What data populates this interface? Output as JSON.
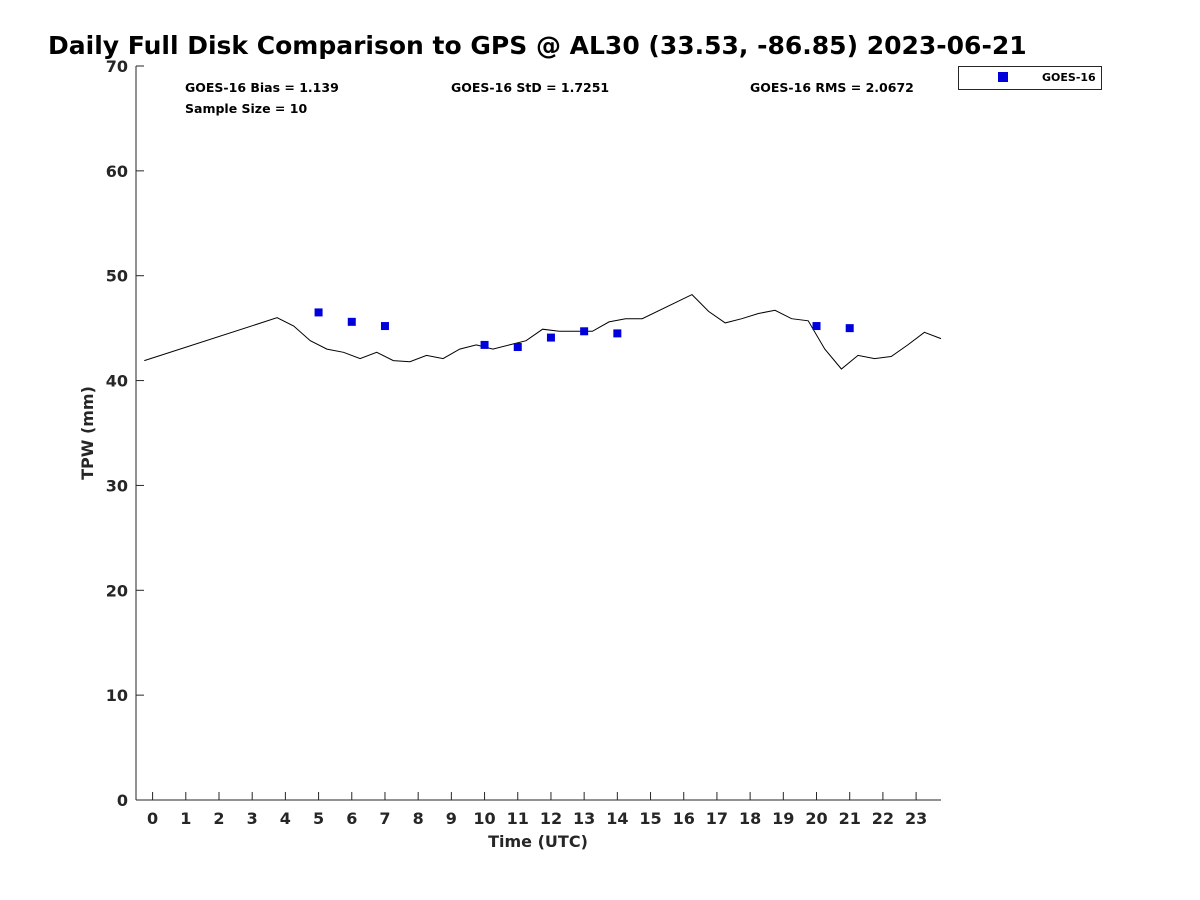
{
  "chart_data": {
    "type": "scatter",
    "title": "Daily Full Disk Comparison to GPS @ AL30 (33.53, -86.85) 2023-06-21",
    "xlabel": "Time (UTC)",
    "ylabel": "TPW (mm)",
    "xlim": [
      -0.5,
      23.75
    ],
    "ylim": [
      0,
      70
    ],
    "x_ticks": [
      0,
      1,
      2,
      3,
      4,
      5,
      6,
      7,
      8,
      9,
      10,
      11,
      12,
      13,
      14,
      15,
      16,
      17,
      18,
      19,
      20,
      21,
      22,
      23
    ],
    "y_ticks": [
      0,
      10,
      20,
      30,
      40,
      50,
      60,
      70
    ],
    "grid": false,
    "legend_position": "top-right, outside plot",
    "stats": {
      "bias": "GOES-16 Bias = 1.139",
      "std": "GOES-16 StD = 1.7251",
      "rms": "GOES-16 RMS = 2.0672",
      "sample": "Sample Size = 10"
    },
    "series": [
      {
        "name": "GOES-16",
        "type": "scatter",
        "marker": "square",
        "color": "#0000dd",
        "x": [
          5,
          6,
          7,
          10,
          11,
          12,
          13,
          14,
          20,
          21
        ],
        "y": [
          46.5,
          45.6,
          45.2,
          43.4,
          43.2,
          44.1,
          44.7,
          44.5,
          45.2,
          45.0
        ]
      },
      {
        "type": "line",
        "color": "#000000",
        "x": [
          -0.25,
          3.75,
          4.25,
          4.75,
          5.25,
          5.75,
          6.25,
          6.75,
          7.25,
          7.75,
          8.25,
          8.75,
          9.25,
          9.75,
          10.25,
          10.75,
          11.25,
          11.75,
          12.25,
          12.75,
          13.25,
          13.75,
          14.25,
          14.75,
          16.25,
          16.75,
          17.25,
          17.75,
          18.25,
          18.75,
          19.25,
          19.75,
          20.25,
          20.75,
          21.25,
          21.75,
          22.25,
          22.75,
          23.25,
          23.75
        ],
        "y": [
          41.9,
          46.0,
          45.2,
          43.8,
          43.0,
          42.7,
          42.1,
          42.7,
          41.9,
          41.8,
          42.4,
          42.1,
          43.0,
          43.4,
          43.0,
          43.4,
          43.8,
          44.9,
          44.7,
          44.7,
          44.7,
          45.6,
          45.9,
          45.9,
          48.2,
          46.6,
          45.5,
          45.9,
          46.4,
          46.7,
          45.9,
          45.7,
          43.0,
          41.1,
          42.4,
          42.1,
          42.3,
          43.4,
          44.6,
          44.0
        ]
      }
    ]
  }
}
